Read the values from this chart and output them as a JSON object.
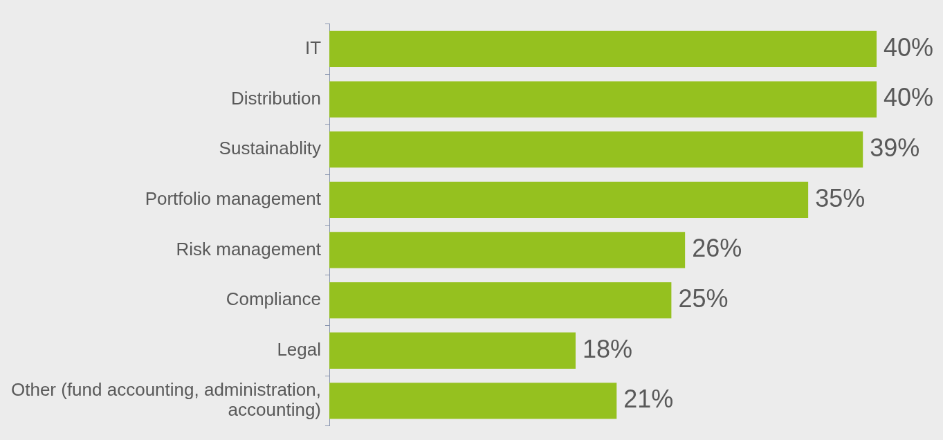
{
  "chart_data": {
    "type": "bar",
    "orientation": "horizontal",
    "categories": [
      "IT",
      "Distribution",
      "Sustainablity",
      "Portfolio management",
      "Risk management",
      "Compliance",
      "Legal",
      "Other (fund accounting, administration, accounting)"
    ],
    "values": [
      40,
      40,
      39,
      35,
      26,
      25,
      18,
      21
    ],
    "color": "#95c11f",
    "value_labels": [
      "40%",
      "40%",
      "39%",
      "35%",
      "26%",
      "25%",
      "18%",
      "21%"
    ]
  }
}
